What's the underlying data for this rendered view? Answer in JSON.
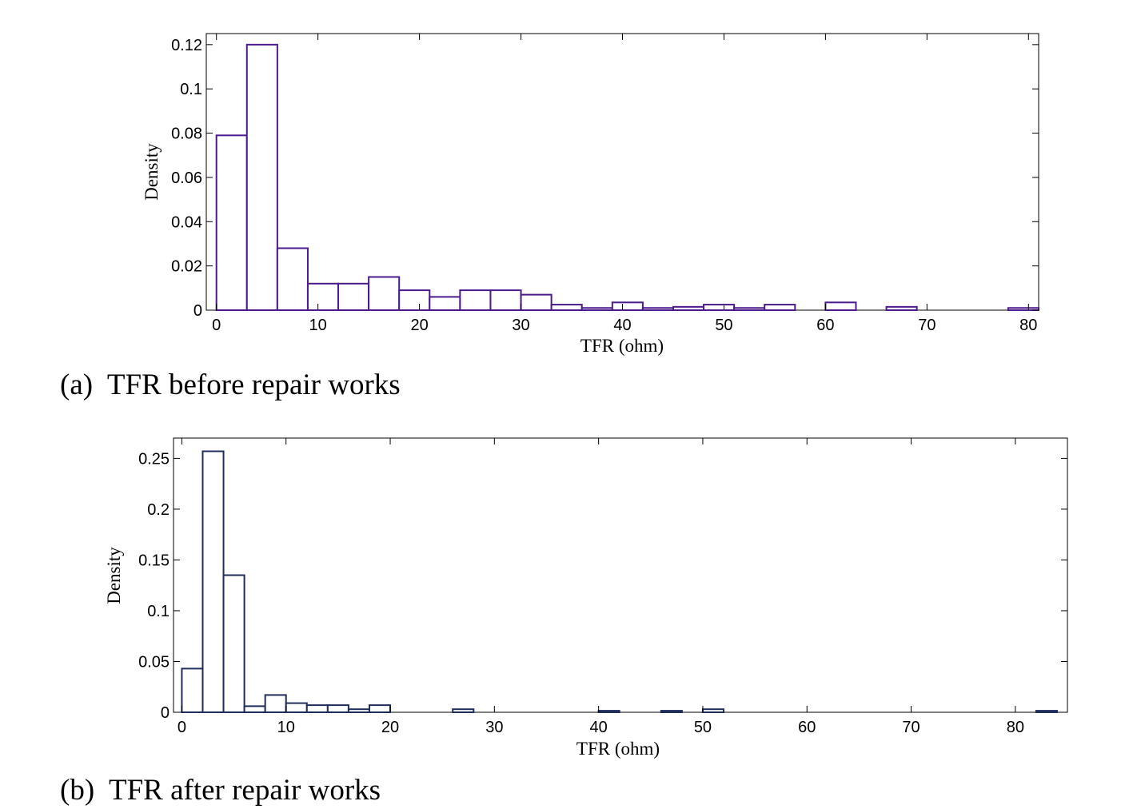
{
  "chart_data": [
    {
      "type": "bar",
      "histogram": true,
      "caption": "(a)  TFR before repair works",
      "xlabel": "TFR (ohm)",
      "ylabel": "Density",
      "xlim": [
        -1,
        81
      ],
      "ylim": [
        0,
        0.125
      ],
      "xticks": [
        0,
        10,
        20,
        30,
        40,
        50,
        60,
        70,
        80
      ],
      "xtick_labels": [
        "0",
        "10",
        "20",
        "30",
        "40",
        "50",
        "60",
        "70",
        "80"
      ],
      "yticks": [
        0,
        0.02,
        0.04,
        0.06,
        0.08,
        0.1,
        0.12
      ],
      "ytick_labels": [
        "0",
        "0.02",
        "0.04",
        "0.06",
        "0.08",
        "0.1",
        "0.12"
      ],
      "grid": false,
      "bar_color": "#4b1a8c",
      "bin_edges": [
        0,
        3,
        6,
        9,
        12,
        15,
        18,
        21,
        24,
        27,
        30,
        33,
        36,
        39,
        42,
        45,
        48,
        51,
        54,
        57,
        60,
        63,
        66,
        69,
        72,
        75,
        78,
        81
      ],
      "values": [
        0.079,
        0.12,
        0.028,
        0.012,
        0.012,
        0.015,
        0.009,
        0.006,
        0.009,
        0.009,
        0.007,
        0.0025,
        0.001,
        0.0035,
        0.001,
        0.0015,
        0.0025,
        0.001,
        0.0025,
        0.0,
        0.0035,
        0.0,
        0.0015,
        0.0,
        0.0,
        0.0,
        0.001
      ]
    },
    {
      "type": "bar",
      "histogram": true,
      "caption": "(b)  TFR after repair works",
      "xlabel": "TFR (ohm)",
      "ylabel": "Density",
      "xlim": [
        -0.8,
        85
      ],
      "ylim": [
        0,
        0.27
      ],
      "xticks": [
        0,
        10,
        20,
        30,
        40,
        50,
        60,
        70,
        80
      ],
      "xtick_labels": [
        "0",
        "10",
        "20",
        "30",
        "40",
        "50",
        "60",
        "70",
        "80"
      ],
      "yticks": [
        0,
        0.05,
        0.1,
        0.15,
        0.2,
        0.25
      ],
      "ytick_labels": [
        "0",
        "0.05",
        "0.1",
        "0.15",
        "0.2",
        "0.25"
      ],
      "grid": false,
      "bar_color": "#1f2d5c",
      "bin_edges": [
        0,
        2,
        4,
        6,
        8,
        10,
        12,
        14,
        16,
        18,
        20,
        22,
        24,
        26,
        28,
        30,
        32,
        34,
        36,
        38,
        40,
        42,
        44,
        46,
        48,
        50,
        52,
        54,
        56,
        58,
        60,
        62,
        64,
        66,
        68,
        70,
        72,
        74,
        76,
        78,
        80,
        82,
        84
      ],
      "values": [
        0.043,
        0.257,
        0.135,
        0.006,
        0.017,
        0.009,
        0.007,
        0.007,
        0.003,
        0.007,
        0,
        0,
        0,
        0.003,
        0,
        0,
        0,
        0,
        0,
        0,
        0.0015,
        0,
        0,
        0.0015,
        0,
        0.003,
        0,
        0,
        0,
        0,
        0,
        0,
        0,
        0,
        0,
        0,
        0,
        0,
        0,
        0,
        0,
        0.0015
      ]
    }
  ]
}
